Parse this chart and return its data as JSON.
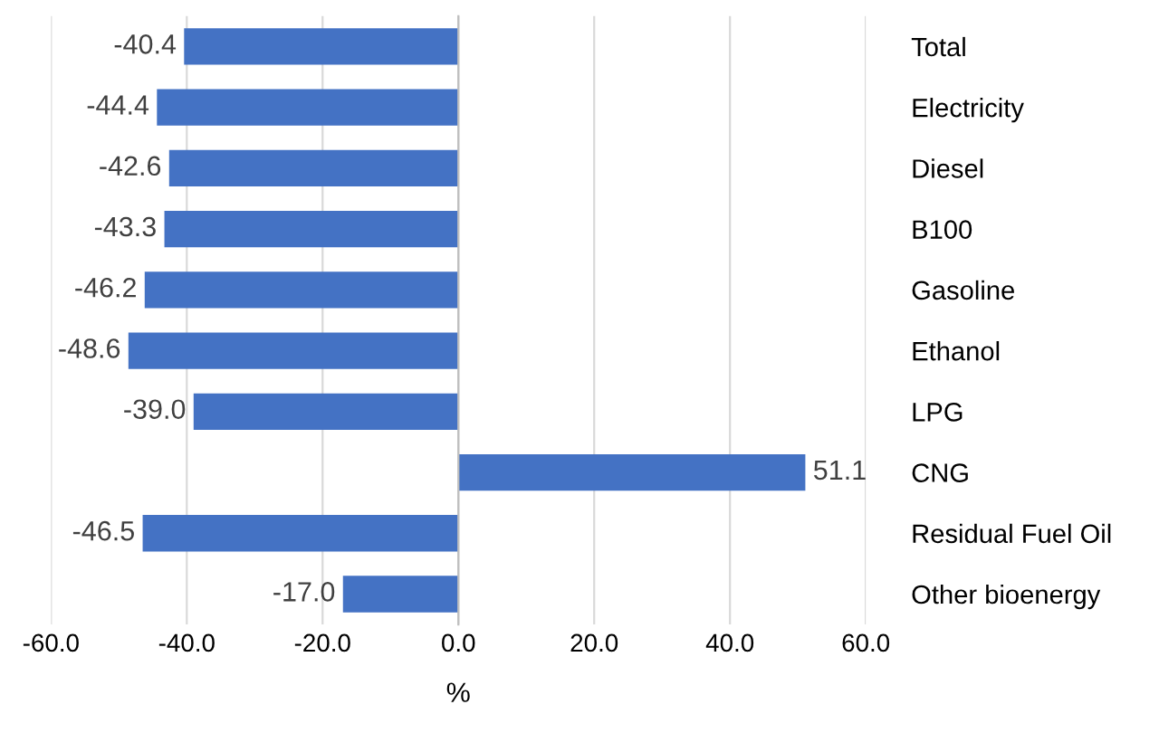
{
  "chart_data": {
    "type": "bar",
    "orientation": "horizontal",
    "categories": [
      "Total",
      "Electricity",
      "Diesel",
      "B100",
      "Gasoline",
      "Ethanol",
      "LPG",
      "CNG",
      "Residual Fuel Oil",
      "Other bioenergy"
    ],
    "values": [
      -40.4,
      -44.4,
      -42.6,
      -43.3,
      -46.2,
      -48.6,
      -39.0,
      51.1,
      -46.5,
      -17.0
    ],
    "value_labels": [
      "-40.4",
      "-44.4",
      "-42.6",
      "-43.3",
      "-46.2",
      "-48.6",
      "-39.0",
      "51.1",
      "-46.5",
      "-17.0"
    ],
    "color": "#4472c4",
    "xlabel": "%",
    "xlim": [
      -60,
      60
    ],
    "xticks": [
      {
        "value": -60,
        "label": "-60.0"
      },
      {
        "value": -40,
        "label": "-40.0"
      },
      {
        "value": -20,
        "label": "-20.0"
      },
      {
        "value": 0,
        "label": "0.0"
      },
      {
        "value": 20,
        "label": "20.0"
      },
      {
        "value": 40,
        "label": "40.0"
      },
      {
        "value": 60,
        "label": "60.0"
      }
    ],
    "grid": "x"
  }
}
